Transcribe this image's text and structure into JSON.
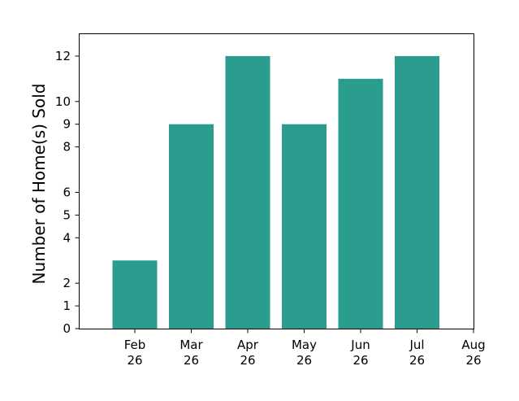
{
  "chart_data": {
    "type": "bar",
    "title": "",
    "xlabel": "",
    "ylabel": "Number of Home(s) Sold",
    "categories": [
      "Feb 26",
      "Mar 26",
      "Apr 26",
      "May 26",
      "Jun 26",
      "Jul 26"
    ],
    "values": [
      3,
      9,
      12,
      9,
      11,
      12
    ],
    "x_ticks": [
      {
        "line1": "Feb",
        "line2": "26"
      },
      {
        "line1": "Mar",
        "line2": "26"
      },
      {
        "line1": "Apr",
        "line2": "26"
      },
      {
        "line1": "May",
        "line2": "26"
      },
      {
        "line1": "Jun",
        "line2": "26"
      },
      {
        "line1": "Jul",
        "line2": "26"
      },
      {
        "line1": "Aug",
        "line2": "26"
      }
    ],
    "y_ticks": [
      0,
      1,
      2,
      4,
      5,
      6,
      8,
      9,
      10,
      12
    ],
    "ylim": [
      0,
      13
    ],
    "grid": false,
    "bar_color": "#2a9d8f"
  }
}
